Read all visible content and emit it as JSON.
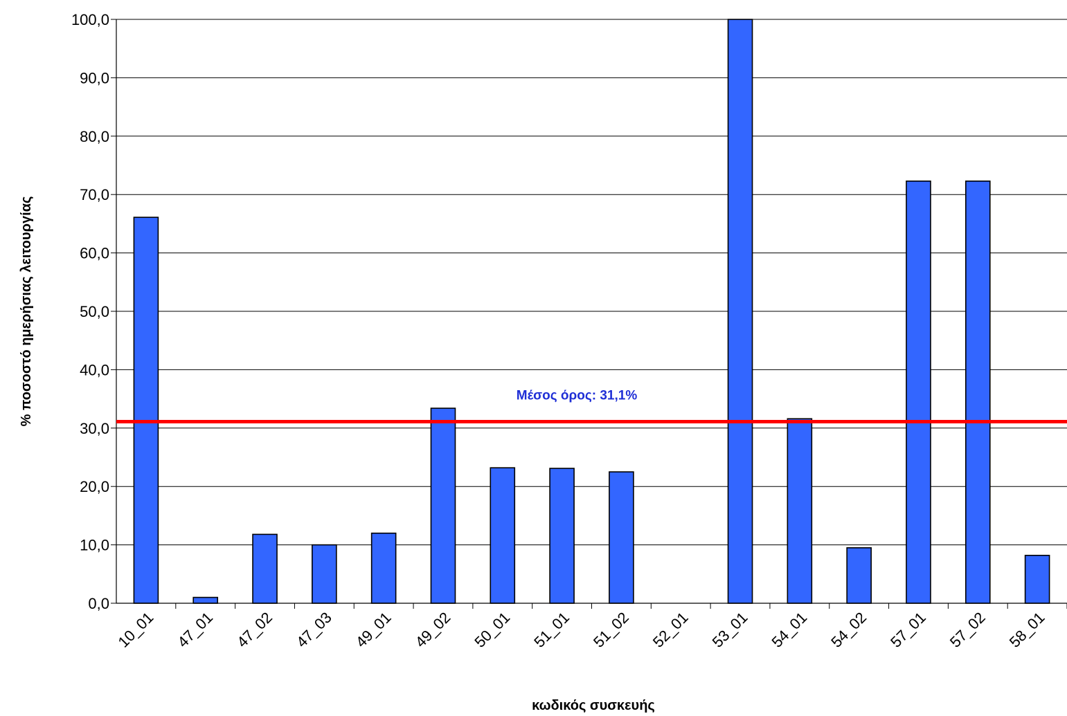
{
  "chart_data": {
    "type": "bar",
    "title": "",
    "xlabel": "κωδικός συσκευής",
    "ylabel": "% ποσοστό ημερήσιας λειτουργίας",
    "ylim": [
      0,
      100
    ],
    "y_ticks": [
      "0,0",
      "10,0",
      "20,0",
      "30,0",
      "40,0",
      "50,0",
      "60,0",
      "70,0",
      "80,0",
      "90,0",
      "100,0"
    ],
    "categories": [
      "10_01",
      "47_01",
      "47_02",
      "47_03",
      "49_01",
      "49_02",
      "50_01",
      "51_01",
      "51_02",
      "52_01",
      "53_01",
      "54_01",
      "54_02",
      "57_01",
      "57_02",
      "58_01"
    ],
    "values": [
      66.1,
      1.0,
      11.8,
      10.0,
      12.0,
      33.4,
      23.2,
      23.1,
      22.5,
      0.0,
      100.0,
      31.6,
      9.5,
      72.3,
      72.3,
      8.2
    ],
    "grid": true,
    "bar_color": "#3366FF",
    "reference_line": {
      "value": 31.1,
      "label": "Μέσος όρος: 31,1%",
      "color": "#FF0000",
      "label_color": "#1F2FD6"
    }
  }
}
